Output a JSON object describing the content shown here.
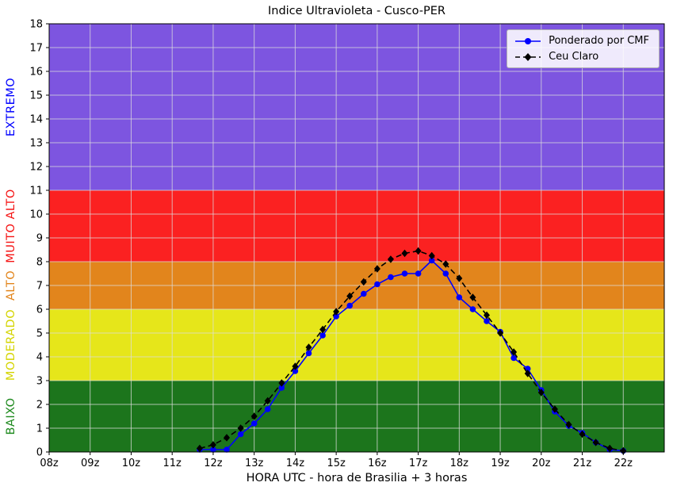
{
  "chart_data": {
    "type": "line",
    "title": "Indice Ultravioleta - Cusco-PER",
    "xlabel": "HORA UTC - hora de Brasilia + 3 horas",
    "ylabel": "",
    "xlim": [
      8,
      23
    ],
    "ylim": [
      0,
      18
    ],
    "grid": true,
    "grid_color": "#dcdcdc",
    "background": "#ffffff",
    "xticks": [
      8,
      9,
      10,
      11,
      12,
      13,
      14,
      15,
      16,
      17,
      18,
      19,
      20,
      21,
      22
    ],
    "xticklabels": [
      "08z",
      "09z",
      "10z",
      "11z",
      "12z",
      "13z",
      "14z",
      "15z",
      "16z",
      "17z",
      "18z",
      "19z",
      "20z",
      "21z",
      "22z"
    ],
    "yticks": [
      0,
      1,
      2,
      3,
      4,
      5,
      6,
      7,
      8,
      9,
      10,
      11,
      12,
      13,
      14,
      15,
      16,
      17,
      18
    ],
    "bands": [
      {
        "label": "BAIXO",
        "from": 0,
        "to": 3,
        "color": "#1c751c",
        "label_color": "#1e8a1e"
      },
      {
        "label": "MODERADO",
        "from": 3,
        "to": 6,
        "color": "#e6e61a",
        "label_color": "#d4d400"
      },
      {
        "label": "ALTO",
        "from": 6,
        "to": 8,
        "color": "#e2851c",
        "label_color": "#e2851c"
      },
      {
        "label": "MUITO ALTO",
        "from": 8,
        "to": 11,
        "color": "#fb2121",
        "label_color": "#f51414"
      },
      {
        "label": "EXTREMO",
        "from": 11,
        "to": 18,
        "color": "#7d55e0",
        "label_color": "#0000ff"
      }
    ],
    "legend": {
      "position": "top-right",
      "entries": [
        "Ponderado por CMF",
        "Ceu Claro"
      ]
    },
    "series": [
      {
        "name": "Ponderado por CMF",
        "color": "#0000ff",
        "marker": "circle",
        "line": "solid",
        "x": [
          11.67,
          12,
          12.33,
          12.67,
          13,
          13.33,
          13.67,
          14,
          14.33,
          14.67,
          15,
          15.33,
          15.67,
          16,
          16.33,
          16.67,
          17,
          17.33,
          17.67,
          18,
          18.33,
          18.67,
          19,
          19.33,
          19.67,
          20,
          20.33,
          20.67,
          21,
          21.33,
          21.67,
          22
        ],
        "y": [
          0.1,
          0.1,
          0.1,
          0.75,
          1.2,
          1.8,
          2.7,
          3.4,
          4.15,
          4.9,
          5.7,
          6.15,
          6.65,
          7.05,
          7.35,
          7.5,
          7.5,
          8.05,
          7.5,
          6.5,
          6.0,
          5.5,
          5.05,
          3.95,
          3.5,
          2.6,
          1.7,
          1.1,
          0.8,
          0.4,
          0.1,
          0.05
        ]
      },
      {
        "name": "Ceu Claro",
        "color": "#000000",
        "marker": "diamond",
        "line": "dashed",
        "x": [
          11.67,
          12,
          12.33,
          12.67,
          13,
          13.33,
          13.67,
          14,
          14.33,
          14.67,
          15,
          15.33,
          15.67,
          16,
          16.33,
          16.67,
          17,
          17.33,
          17.67,
          18,
          18.33,
          18.67,
          19,
          19.33,
          19.67,
          20,
          20.33,
          20.67,
          21,
          21.33,
          21.67,
          22
        ],
        "y": [
          0.15,
          0.3,
          0.6,
          1.0,
          1.5,
          2.15,
          2.9,
          3.6,
          4.4,
          5.15,
          5.9,
          6.55,
          7.15,
          7.7,
          8.1,
          8.35,
          8.45,
          8.25,
          7.9,
          7.3,
          6.5,
          5.75,
          5.0,
          4.2,
          3.3,
          2.5,
          1.8,
          1.15,
          0.75,
          0.4,
          0.15,
          0.05
        ]
      }
    ]
  }
}
